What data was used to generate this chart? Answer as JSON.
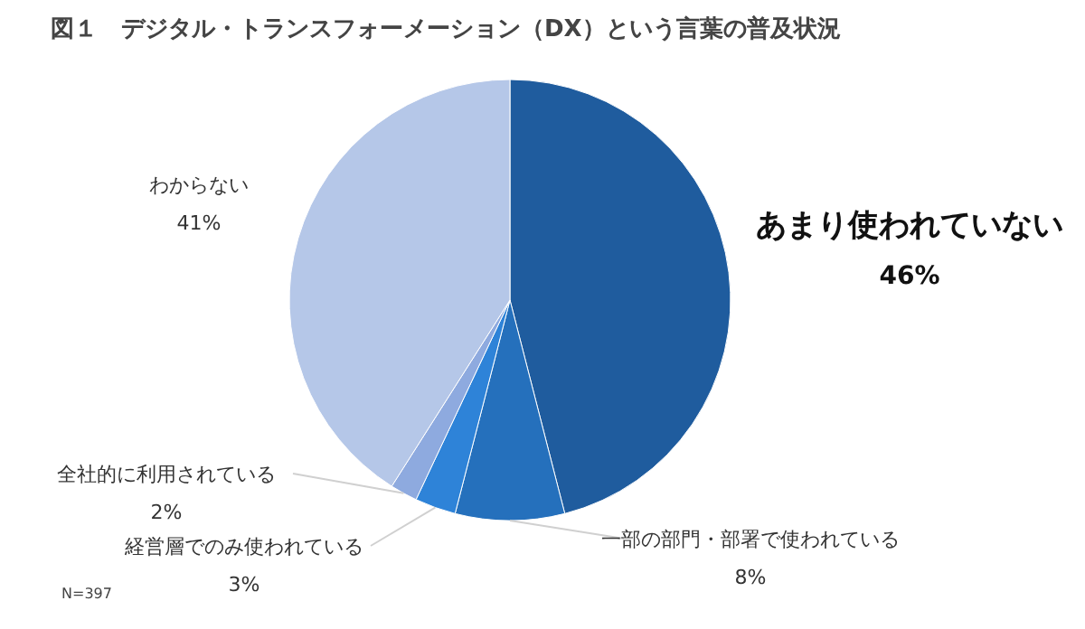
{
  "chart_data": {
    "type": "pie",
    "title": "図１　デジタル・トランスフォーメーション（DX）という言葉の普及状況",
    "categories": [
      "あまり使われていない",
      "一部の部門・部署で使われている",
      "経営層でのみ使われている",
      "全社的に利用されている",
      "わからない"
    ],
    "values": [
      46,
      8,
      3,
      2,
      41
    ],
    "colors": [
      "#1f5c9e",
      "#2570bc",
      "#2e83d8",
      "#8eaadf",
      "#b5c7e8"
    ],
    "value_labels": [
      "46%",
      "8%",
      "3%",
      "2%",
      "41%"
    ],
    "annotations": [
      "N=397"
    ]
  }
}
